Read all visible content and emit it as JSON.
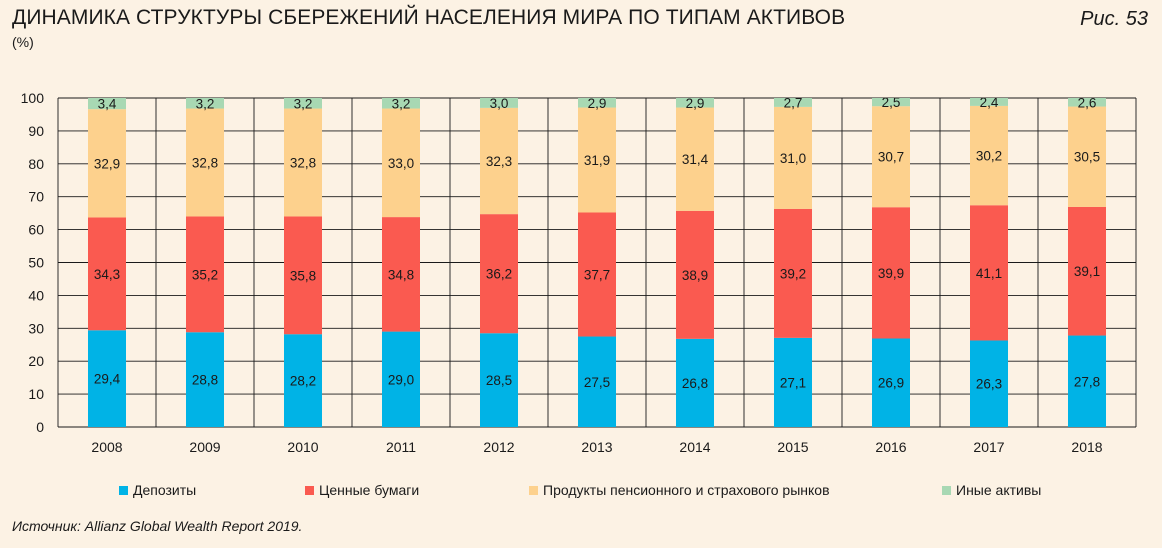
{
  "header": {
    "title": "ДИНАМИКА СТРУКТУРЫ СБЕРЕЖЕНИЙ НАСЕЛЕНИЯ МИРА ПО ТИПАМ АКТИВОВ",
    "subtitle": "(%)",
    "figure_label": "Рис. 53"
  },
  "source": "Источник: Allianz Global Wealth Report 2019.",
  "chart_data": {
    "type": "bar",
    "stacked": true,
    "categories": [
      "2008",
      "2009",
      "2010",
      "2011",
      "2012",
      "2013",
      "2014",
      "2015",
      "2016",
      "2017",
      "2018"
    ],
    "series": [
      {
        "name": "Депозиты",
        "color": "#00b3e6",
        "values": [
          29.4,
          28.8,
          28.2,
          29.0,
          28.5,
          27.5,
          26.8,
          27.1,
          26.9,
          26.3,
          27.8
        ],
        "labels": [
          "29,4",
          "28,8",
          "28,2",
          "29,0",
          "28,5",
          "27,5",
          "26,8",
          "27,1",
          "26,9",
          "26,3",
          "27,8"
        ]
      },
      {
        "name": "Ценные бумаги",
        "color": "#fa5a50",
        "values": [
          34.3,
          35.2,
          35.8,
          34.8,
          36.2,
          37.7,
          38.9,
          39.2,
          39.9,
          41.1,
          39.1
        ],
        "labels": [
          "34,3",
          "35,2",
          "35,8",
          "34,8",
          "36,2",
          "37,7",
          "38,9",
          "39,2",
          "39,9",
          "41,1",
          "39,1"
        ]
      },
      {
        "name": "Продукты пенсионного и страхового рынков",
        "color": "#fdd18d",
        "values": [
          32.9,
          32.8,
          32.8,
          33.0,
          32.3,
          31.9,
          31.4,
          31.0,
          30.7,
          30.2,
          30.5
        ],
        "labels": [
          "32,9",
          "32,8",
          "32,8",
          "33,0",
          "32,3",
          "31,9",
          "31,4",
          "31,0",
          "30,7",
          "30,2",
          "30,5"
        ]
      },
      {
        "name": "Иные активы",
        "color": "#a8d8b3",
        "values": [
          3.4,
          3.2,
          3.2,
          3.2,
          3.0,
          2.9,
          2.9,
          2.7,
          2.5,
          2.4,
          2.6
        ],
        "labels": [
          "3,4",
          "3,2",
          "3,2",
          "3,2",
          "3,0",
          "2,9",
          "2,9",
          "2,7",
          "2,5",
          "2,4",
          "2,6"
        ]
      }
    ],
    "yticks": [
      "0",
      "10",
      "20",
      "30",
      "40",
      "50",
      "60",
      "70",
      "80",
      "90",
      "100"
    ],
    "ylim": [
      0,
      100
    ],
    "grid": true,
    "legend_position": "bottom"
  }
}
